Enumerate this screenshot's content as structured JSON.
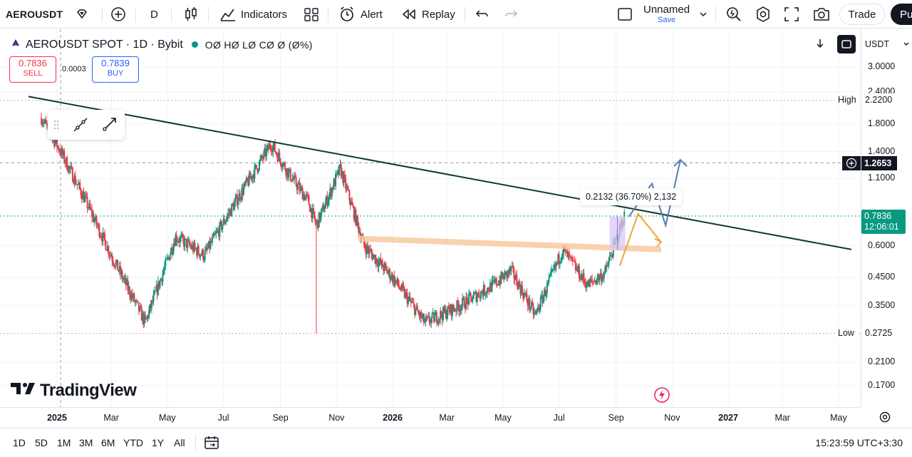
{
  "toolbar": {
    "symbol": "AEROUSDT",
    "interval": "D",
    "indicators_label": "Indicators",
    "alert_label": "Alert",
    "replay_label": "Replay",
    "layout_name": "Unnamed",
    "save_label": "Save",
    "trade_label": "Trade",
    "publish_label": "Pu"
  },
  "legend": {
    "title": "AEROUSDT SPOT · 1D · Bybit",
    "ohlc": "OØ HØ LØ CØ Ø (Ø%)",
    "sell_price": "0.7836",
    "sell_label": "SELL",
    "spread": "0.0003",
    "buy_price": "0.7839",
    "buy_label": "BUY"
  },
  "axis_controls": {
    "currency": "USDT"
  },
  "price_axis": {
    "ticks": [
      "3.0000",
      "2.4000",
      "1.8000",
      "1.4000",
      "1.1000",
      "0.6000",
      "0.4500",
      "0.3500",
      "0.2100",
      "0.1700"
    ],
    "high_label": "High",
    "high_value": "2.2200",
    "crosshair_value": "1.2653",
    "last_price": "0.7836",
    "countdown": "12:06:01",
    "low_label": "Low",
    "low_value": "0.2725"
  },
  "time_axis": {
    "labels": [
      "2025",
      "Mar",
      "May",
      "Jul",
      "Sep",
      "Nov",
      "2026",
      "Mar",
      "May",
      "Jul",
      "Sep",
      "Nov",
      "2027",
      "Mar",
      "May"
    ]
  },
  "measure": {
    "label": "0.2132 (36.70%) 2,132"
  },
  "brand": {
    "logo_text": "TradingView"
  },
  "bottom_bar": {
    "timeframes": [
      "1D",
      "5D",
      "1M",
      "3M",
      "6M",
      "YTD",
      "1Y",
      "All"
    ],
    "clock": "15:23:59 UTC+3:30"
  },
  "colors": {
    "up": "#089981",
    "down": "#f23645",
    "accent": "#2962ff",
    "trendline": "#0b3d2e",
    "support": "#f7c9a0",
    "path_blue": "#5b7bb4",
    "path_orange": "#f0a33a",
    "measure_fill": "#d9c8f5",
    "last_price_bg": "#089981"
  },
  "chart_data": {
    "type": "candlestick",
    "symbol": "AEROUSDT",
    "exchange": "Bybit",
    "interval": "1D",
    "y_scale": "log",
    "ylim": [
      0.16,
      3.2
    ],
    "x_range": [
      "2024-12-01",
      "2027-05-15"
    ],
    "series": [
      {
        "date": "2024-12-15",
        "close": 1.9
      },
      {
        "date": "2025-01-05",
        "close": 1.4
      },
      {
        "date": "2025-02-01",
        "close": 0.9
      },
      {
        "date": "2025-03-01",
        "close": 0.55
      },
      {
        "date": "2025-04-07",
        "close": 0.3
      },
      {
        "date": "2025-05-10",
        "close": 0.65
      },
      {
        "date": "2025-06-10",
        "close": 0.55
      },
      {
        "date": "2025-07-15",
        "close": 0.9
      },
      {
        "date": "2025-08-22",
        "close": 1.5
      },
      {
        "date": "2025-09-10",
        "close": 1.15
      },
      {
        "date": "2025-10-01",
        "close": 0.9
      },
      {
        "date": "2025-10-10",
        "close": 0.72
      },
      {
        "date": "2025-11-05",
        "close": 1.2
      },
      {
        "date": "2025-12-01",
        "close": 0.6
      },
      {
        "date": "2026-01-01",
        "close": 0.45
      },
      {
        "date": "2026-02-05",
        "close": 0.3
      },
      {
        "date": "2026-03-15",
        "close": 0.35
      },
      {
        "date": "2026-04-20",
        "close": 0.42
      },
      {
        "date": "2026-05-10",
        "close": 0.48
      },
      {
        "date": "2026-06-05",
        "close": 0.32
      },
      {
        "date": "2026-07-05",
        "close": 0.58
      },
      {
        "date": "2026-08-01",
        "close": 0.42
      },
      {
        "date": "2026-08-20",
        "close": 0.47
      },
      {
        "date": "2026-09-10",
        "close": 0.7836
      }
    ],
    "wick_low_date": "2025-10-10",
    "wick_low": 0.2725,
    "high": 2.22,
    "low": 0.2725,
    "last": 0.7836,
    "drawings": {
      "trendline": {
        "from": [
          "2024-12-01",
          2.3
        ],
        "to": [
          "2027-05-15",
          0.58
        ]
      },
      "support_zone": {
        "from": [
          "2025-11-25",
          0.64
        ],
        "to": [
          "2026-10-20",
          0.58
        ]
      },
      "measure": {
        "label": "0.2132 (36.70%) 2,132"
      },
      "projection_blue": [
        [
          "2026-09-15",
          0.78
        ],
        [
          "2026-10-10",
          1.05
        ],
        [
          "2026-10-25",
          0.72
        ],
        [
          "2026-11-10",
          1.3
        ]
      ],
      "projection_orange": [
        [
          "2026-09-05",
          0.5
        ],
        [
          "2026-09-25",
          0.8
        ],
        [
          "2026-10-20",
          0.62
        ]
      ]
    }
  }
}
